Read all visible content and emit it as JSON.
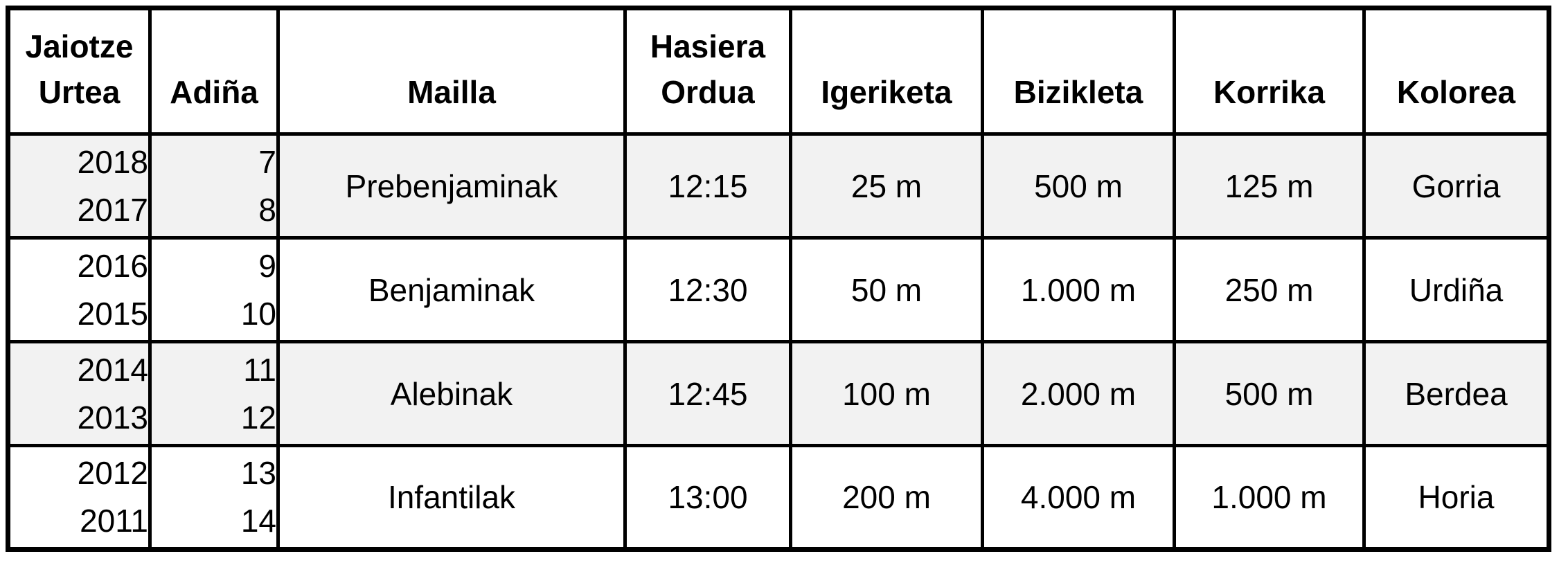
{
  "table": {
    "headers": {
      "jaiotze_urtea_line1": "Jaiotze",
      "jaiotze_urtea_line2": "Urtea",
      "adina": "Adiña",
      "mailla": "Mailla",
      "hasiera_ordua_line1": "Hasiera",
      "hasiera_ordua_line2": "Ordua",
      "igeriketa": "Igeriketa",
      "bizikleta": "Bizikleta",
      "korrika": "Korrika",
      "kolorea": "Kolorea"
    },
    "rows": [
      {
        "jaiotze_urtea": [
          "2018",
          "2017"
        ],
        "adina": [
          "7",
          "8"
        ],
        "mailla": "Prebenjaminak",
        "hasiera_ordua": "12:15",
        "igeriketa": "25 m",
        "bizikleta": "500 m",
        "korrika": "125 m",
        "kolorea": "Gorria"
      },
      {
        "jaiotze_urtea": [
          "2016",
          "2015"
        ],
        "adina": [
          "9",
          "10"
        ],
        "mailla": "Benjaminak",
        "hasiera_ordua": "12:30",
        "igeriketa": "50 m",
        "bizikleta": "1.000 m",
        "korrika": "250 m",
        "kolorea": "Urdiña"
      },
      {
        "jaiotze_urtea": [
          "2014",
          "2013"
        ],
        "adina": [
          "11",
          "12"
        ],
        "mailla": "Alebinak",
        "hasiera_ordua": "12:45",
        "igeriketa": "100 m",
        "bizikleta": "2.000 m",
        "korrika": "500 m",
        "kolorea": "Berdea"
      },
      {
        "jaiotze_urtea": [
          "2012",
          "2011"
        ],
        "adina": [
          "13",
          "14"
        ],
        "mailla": "Infantilak",
        "hasiera_ordua": "13:00",
        "igeriketa": "200 m",
        "bizikleta": "4.000 m",
        "korrika": "1.000 m",
        "kolorea": "Horia"
      }
    ],
    "colors": {
      "band_gray": "#f2f2f2",
      "border_black": "#000000",
      "background_white": "#ffffff"
    }
  }
}
